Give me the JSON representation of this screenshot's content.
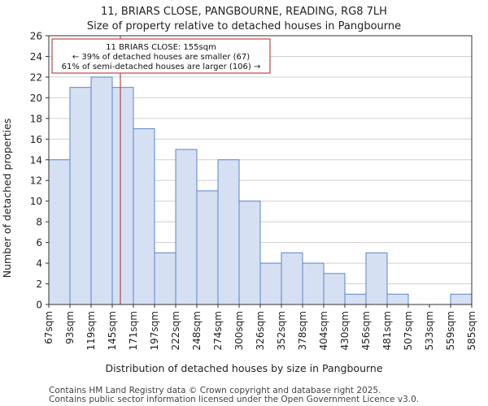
{
  "chart_data": {
    "type": "bar",
    "title_line1": "11, BRIARS CLOSE, PANGBOURNE, READING, RG8 7LH",
    "title_line2": "Size of property relative to detached houses in Pangbourne",
    "xlabel": "Distribution of detached houses by size in Pangbourne",
    "ylabel": "Number of detached properties",
    "bin_edges": [
      67,
      93,
      119,
      145,
      171,
      197,
      222,
      248,
      274,
      300,
      326,
      352,
      378,
      404,
      430,
      456,
      481,
      507,
      533,
      559,
      585
    ],
    "tick_labels": [
      "67sqm",
      "93sqm",
      "119sqm",
      "145sqm",
      "171sqm",
      "197sqm",
      "222sqm",
      "248sqm",
      "274sqm",
      "300sqm",
      "326sqm",
      "352sqm",
      "378sqm",
      "404sqm",
      "430sqm",
      "456sqm",
      "481sqm",
      "507sqm",
      "533sqm",
      "559sqm",
      "585sqm"
    ],
    "values": [
      14,
      21,
      22,
      21,
      17,
      5,
      15,
      11,
      14,
      10,
      4,
      5,
      4,
      3,
      1,
      5,
      1,
      0,
      0,
      1
    ],
    "ylim": [
      0,
      26
    ],
    "yticks": [
      0,
      2,
      4,
      6,
      8,
      10,
      12,
      14,
      16,
      18,
      20,
      22,
      24,
      26
    ],
    "grid": true,
    "bar_color": "#d6e0f3",
    "bar_edge_color": "#5b85c6",
    "marker": {
      "value": 155,
      "color": "#b22222",
      "annotation": [
        "11 BRIARS CLOSE: 155sqm",
        "← 39% of detached houses are smaller (67)",
        "61% of semi-detached houses are larger (106) →"
      ]
    }
  },
  "footer": {
    "line1": "Contains HM Land Registry data © Crown copyright and database right 2025.",
    "line2": "Contains public sector information licensed under the Open Government Licence v3.0."
  }
}
